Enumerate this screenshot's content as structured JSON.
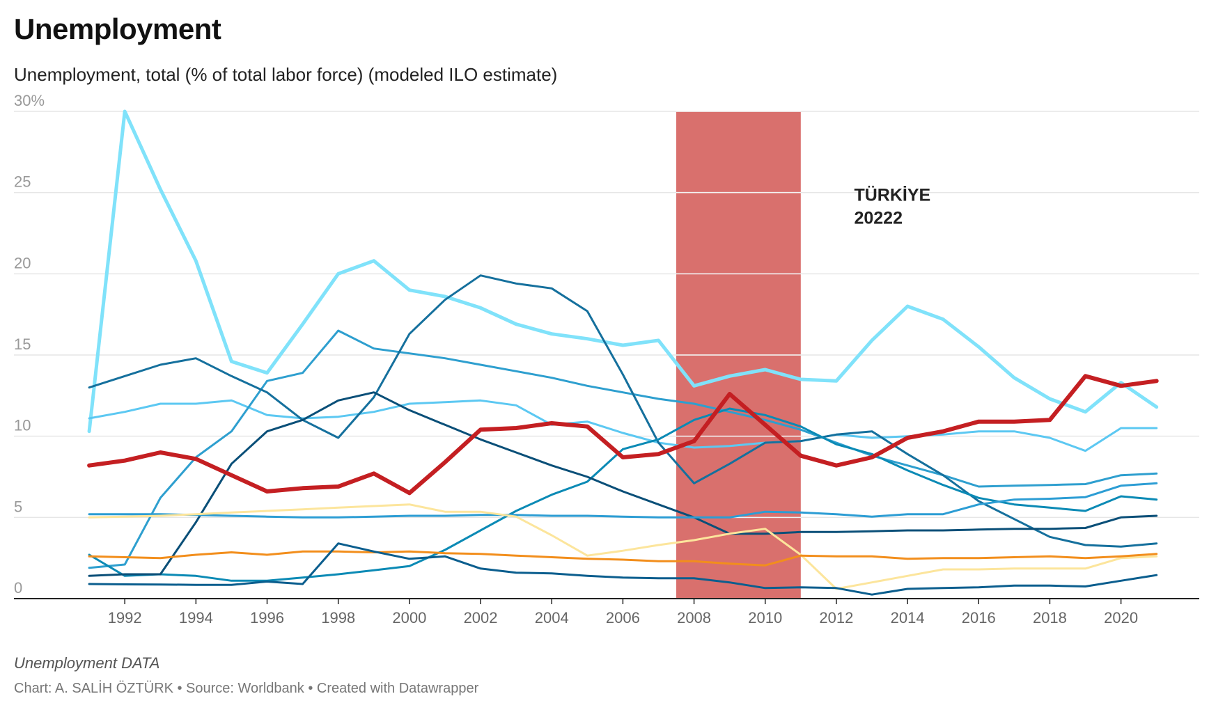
{
  "title": "Unemployment",
  "subtitle": "Unemployment, total (% of total labor force) (modeled ILO estimate)",
  "note": "Unemployment DATA",
  "credit": "Chart: A. SALİH ÖZTÜRK • Source: Worldbank • Created with Datawrapper",
  "chart_data": {
    "type": "line",
    "x": [
      1991,
      1992,
      1993,
      1994,
      1995,
      1996,
      1997,
      1998,
      1999,
      2000,
      2001,
      2002,
      2003,
      2004,
      2005,
      2006,
      2007,
      2008,
      2009,
      2010,
      2011,
      2012,
      2013,
      2014,
      2015,
      2016,
      2017,
      2018,
      2019,
      2020,
      2021
    ],
    "ylim": [
      0,
      30
    ],
    "xlim": [
      1990,
      2022.2
    ],
    "y_ticks": [
      {
        "value": 0,
        "label": "0"
      },
      {
        "value": 5,
        "label": "5"
      },
      {
        "value": 10,
        "label": "10"
      },
      {
        "value": 15,
        "label": "15"
      },
      {
        "value": 20,
        "label": "20"
      },
      {
        "value": 25,
        "label": "25"
      },
      {
        "value": 30,
        "label": "30%"
      }
    ],
    "x_ticks": [
      1992,
      1994,
      1996,
      1998,
      2000,
      2002,
      2004,
      2006,
      2008,
      2010,
      2012,
      2014,
      2016,
      2018,
      2020
    ],
    "grid": true,
    "shaded_range": {
      "from": 2007.5,
      "to": 2011,
      "color": "#d9706d"
    },
    "annotation": {
      "lines": [
        "TÜRKİYE",
        "20222"
      ],
      "x": 2012.5,
      "y": 24.5
    },
    "series": [
      {
        "color": "#80e2fa",
        "width": 5,
        "values": [
          10.3,
          30.0,
          25.2,
          20.8,
          14.6,
          13.9,
          16.9,
          20.0,
          20.8,
          19.0,
          18.6,
          17.9,
          16.9,
          16.3,
          16.0,
          15.6,
          15.9,
          13.1,
          13.7,
          14.1,
          13.5,
          13.4,
          15.9,
          18.0,
          17.2,
          15.5,
          13.6,
          12.3,
          11.5,
          13.3,
          11.8
        ]
      },
      {
        "color": "#5cc8f2",
        "width": 3,
        "values": [
          11.1,
          11.5,
          12.0,
          12.0,
          12.2,
          11.3,
          11.1,
          11.2,
          11.5,
          12.0,
          12.1,
          12.2,
          11.9,
          10.7,
          10.9,
          10.2,
          9.6,
          9.3,
          9.4,
          9.6,
          9.7,
          10.1,
          9.9,
          10.0,
          10.1,
          10.3,
          10.3,
          9.9,
          9.1,
          10.5,
          10.5
        ]
      },
      {
        "color": "#2e9fcf",
        "width": 3,
        "values": [
          1.9,
          2.1,
          6.2,
          8.7,
          10.3,
          13.4,
          13.9,
          16.5,
          15.4,
          15.1,
          14.8,
          14.4,
          14.0,
          13.6,
          13.1,
          12.7,
          12.3,
          12.0,
          11.5,
          11.0,
          10.4,
          9.6,
          8.8,
          8.2,
          7.6,
          6.9,
          6.95,
          7.0,
          7.05,
          7.6,
          7.7
        ]
      },
      {
        "color": "#15709d",
        "width": 3,
        "values": [
          13.0,
          13.7,
          14.4,
          14.8,
          13.7,
          12.7,
          11.0,
          9.9,
          12.4,
          16.3,
          18.4,
          19.9,
          19.4,
          19.1,
          17.7,
          13.8,
          9.6,
          7.1,
          8.3,
          9.6,
          9.7,
          10.1,
          10.3,
          8.9,
          7.6,
          6.0,
          4.9,
          3.8,
          3.3,
          3.2,
          3.4
        ]
      },
      {
        "color": "#0b8ab5",
        "width": 3,
        "values": [
          2.7,
          1.4,
          1.5,
          1.4,
          1.1,
          1.1,
          1.3,
          1.5,
          1.75,
          2.0,
          3.0,
          4.2,
          5.4,
          6.4,
          7.2,
          9.2,
          9.8,
          11.0,
          11.7,
          11.3,
          10.6,
          9.5,
          8.9,
          7.9,
          7.0,
          6.2,
          5.8,
          5.6,
          5.4,
          6.3,
          6.1
        ]
      },
      {
        "color": "#0a4f78",
        "width": 3,
        "values": [
          1.4,
          1.5,
          1.5,
          4.7,
          8.3,
          10.3,
          11.0,
          12.2,
          12.7,
          11.6,
          10.7,
          9.8,
          9.0,
          8.2,
          7.5,
          6.6,
          5.8,
          5.0,
          4.0,
          4.0,
          4.1,
          4.1,
          4.15,
          4.2,
          4.2,
          4.25,
          4.3,
          4.3,
          4.35,
          5.0,
          5.1
        ]
      },
      {
        "color": "#2c9dd4",
        "width": 3,
        "values": [
          5.2,
          5.2,
          5.2,
          5.15,
          5.1,
          5.05,
          5.0,
          5.0,
          5.05,
          5.1,
          5.1,
          5.15,
          5.15,
          5.1,
          5.1,
          5.05,
          5.0,
          5.0,
          5.0,
          5.35,
          5.3,
          5.2,
          5.05,
          5.2,
          5.2,
          5.8,
          6.1,
          6.15,
          6.25,
          6.95,
          7.1
        ]
      },
      {
        "color": "#fce59c",
        "width": 3,
        "values": [
          5.0,
          5.05,
          5.1,
          5.2,
          5.3,
          5.4,
          5.5,
          5.6,
          5.7,
          5.8,
          5.35,
          5.35,
          5.05,
          3.9,
          2.65,
          2.95,
          3.3,
          3.6,
          4.0,
          4.3,
          2.7,
          0.6,
          1.0,
          1.4,
          1.8,
          1.8,
          1.85,
          1.85,
          1.85,
          2.5,
          2.6
        ]
      },
      {
        "color": "#f28e1c",
        "width": 3,
        "values": [
          2.6,
          2.55,
          2.5,
          2.7,
          2.85,
          2.7,
          2.9,
          2.9,
          2.85,
          2.9,
          2.8,
          2.75,
          2.65,
          2.55,
          2.45,
          2.4,
          2.3,
          2.3,
          2.15,
          2.05,
          2.65,
          2.6,
          2.6,
          2.45,
          2.5,
          2.5,
          2.55,
          2.6,
          2.5,
          2.6,
          2.75
        ]
      },
      {
        "color": "#0b5e8e",
        "width": 3,
        "values": [
          0.9,
          0.88,
          0.87,
          0.85,
          0.85,
          1.05,
          0.9,
          3.4,
          2.9,
          2.45,
          2.6,
          1.85,
          1.6,
          1.55,
          1.4,
          1.3,
          1.25,
          1.25,
          1.0,
          0.65,
          0.7,
          0.65,
          0.25,
          0.6,
          0.65,
          0.7,
          0.8,
          0.8,
          0.75,
          1.1,
          1.45
        ]
      },
      {
        "color": "#c41f22",
        "width": 6,
        "values": [
          8.2,
          8.5,
          9.0,
          8.6,
          7.6,
          6.6,
          6.8,
          6.9,
          7.7,
          6.5,
          8.4,
          10.4,
          10.5,
          10.8,
          10.6,
          8.7,
          8.9,
          9.7,
          12.6,
          10.7,
          8.8,
          8.2,
          8.7,
          9.9,
          10.3,
          10.9,
          10.9,
          11.0,
          13.7,
          13.1,
          13.4
        ]
      }
    ]
  }
}
